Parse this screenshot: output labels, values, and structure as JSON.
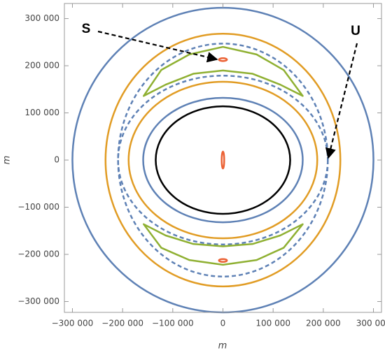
{
  "chart_data": {
    "type": "contour",
    "xlabel": "m",
    "ylabel": "m",
    "xlim": [
      -316000,
      316000
    ],
    "ylim": [
      -323000,
      332000
    ],
    "xticks": [
      {
        "value": -300000,
        "label": "−300 000"
      },
      {
        "value": -200000,
        "label": "−200 000"
      },
      {
        "value": -100000,
        "label": "−100 000"
      },
      0,
      {
        "value": 100000,
        "label": "100 000"
      },
      {
        "value": 200000,
        "label": "200 000"
      },
      {
        "value": 300000,
        "label": "300 000"
      }
    ],
    "yticks": [
      {
        "value": -300000,
        "label": "−300 000"
      },
      {
        "value": -200000,
        "label": "−200 000"
      },
      {
        "value": -100000,
        "label": "−100 000"
      },
      0,
      {
        "value": 100000,
        "label": "100 000"
      },
      {
        "value": 200000,
        "label": "200 000"
      },
      {
        "value": 300000,
        "label": "300 000"
      }
    ],
    "annotations": [
      "S",
      "U"
    ],
    "curves": [
      {
        "shape": "ellipse",
        "color": "#5e81b5",
        "dashed": false,
        "center": [
          0,
          0
        ],
        "radii": [
          300000,
          323000
        ]
      },
      {
        "shape": "ellipse",
        "color": "#e19c24",
        "dashed": false,
        "center": [
          0,
          0
        ],
        "radii": [
          234000,
          268000
        ]
      },
      {
        "shape": "ellipse",
        "color": "#5e81b5",
        "dashed": true,
        "center": [
          0,
          0
        ],
        "radii": [
          209000,
          247000
        ]
      },
      {
        "shape": "ellipse",
        "color": "#5e81b5",
        "dashed": true,
        "center": [
          0,
          0
        ],
        "radii": [
          209000,
          179000
        ]
      },
      {
        "shape": "ellipse",
        "color": "#e19c24",
        "dashed": false,
        "center": [
          0,
          0
        ],
        "radii": [
          188000,
          166000
        ]
      },
      {
        "shape": "ellipse",
        "color": "#5e81b5",
        "dashed": false,
        "center": [
          0,
          0
        ],
        "radii": [
          159000,
          132000
        ]
      },
      {
        "shape": "ellipse",
        "color": "#000000",
        "dashed": false,
        "center": [
          0,
          0
        ],
        "radii": [
          134000,
          114000
        ]
      },
      {
        "shape": "polygon",
        "color": "#8fb032",
        "dashed": false,
        "x": [
          -158000,
          -123000,
          -67000,
          0,
          67000,
          121000,
          159000,
          114000,
          59000,
          0,
          -59000,
          -114000
        ],
        "y": [
          136000,
          191000,
          224000,
          240000,
          224000,
          191000,
          136000,
          160000,
          183000,
          190000,
          183000,
          160000
        ]
      },
      {
        "shape": "polygon",
        "color": "#8fb032",
        "dashed": false,
        "x": [
          -158000,
          -123000,
          -67000,
          0,
          67000,
          121000,
          159000,
          114000,
          59000,
          0,
          -59000,
          -114000
        ],
        "y": [
          -136000,
          -186000,
          -212000,
          -222000,
          -212000,
          -186000,
          -136000,
          -160000,
          -178000,
          -183000,
          -178000,
          -160000
        ]
      },
      {
        "shape": "ellipse",
        "color": "#eb6235",
        "dashed": false,
        "center": [
          0,
          213000
        ],
        "radii": [
          8000,
          3000
        ]
      },
      {
        "shape": "ellipse",
        "color": "#eb6235",
        "dashed": false,
        "center": [
          0,
          -213000
        ],
        "radii": [
          8000,
          3000
        ]
      },
      {
        "shape": "ellipse",
        "color": "#eb6235",
        "dashed": false,
        "center": [
          0,
          0
        ],
        "radii": [
          2500,
          18000
        ]
      }
    ]
  }
}
